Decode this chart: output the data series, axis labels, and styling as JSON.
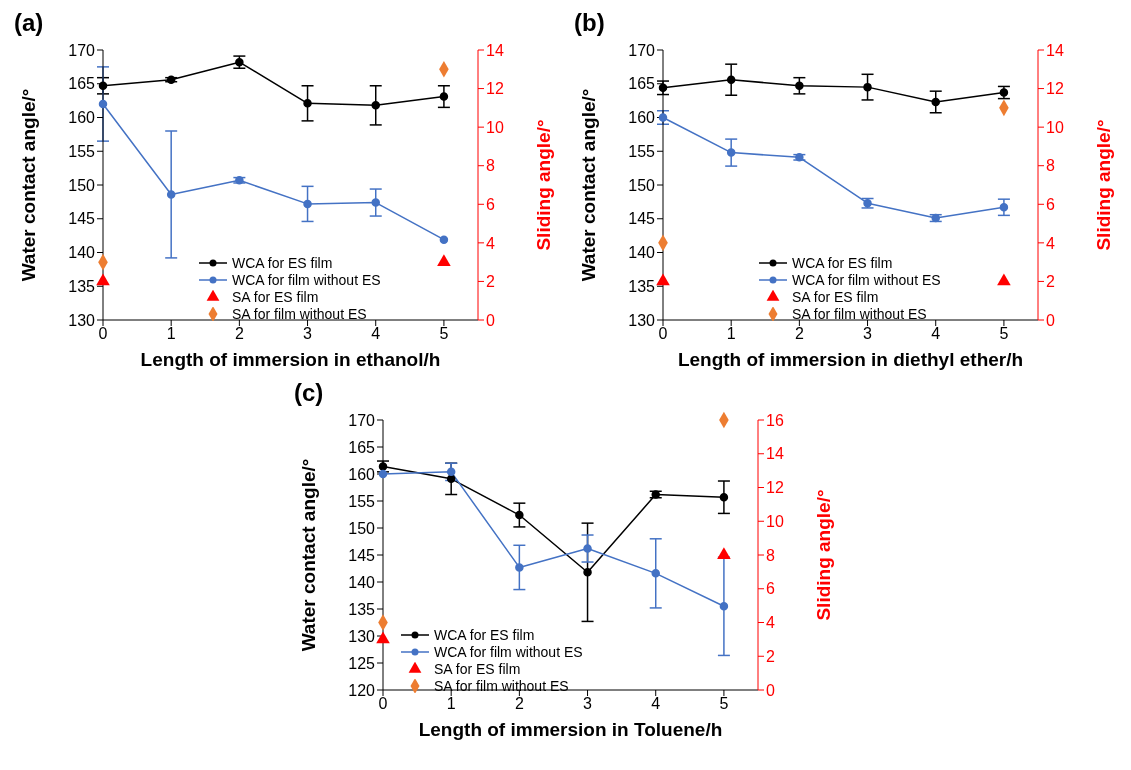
{
  "chart_data": [
    {
      "type": "line",
      "title": "(a)",
      "xlabel": "Length of immersion in ethanol/h",
      "ylabel": "Water contact angle/°",
      "y2label": "Sliding angle/°",
      "x": [
        0,
        1,
        2,
        3,
        4,
        5
      ],
      "xlim": [
        0,
        5.5
      ],
      "xticks": [
        0,
        1,
        2,
        3,
        4,
        5
      ],
      "ylim": [
        130,
        170
      ],
      "yticks": [
        130,
        135,
        140,
        145,
        150,
        155,
        160,
        165,
        170
      ],
      "y2lim": [
        0,
        14
      ],
      "y2ticks": [
        0,
        2,
        4,
        6,
        8,
        10,
        12,
        14
      ],
      "grid": false,
      "legend": "bottom",
      "series": [
        {
          "name": "WCA for ES film",
          "type": "line",
          "color": "#000000",
          "marker": "circle",
          "values": [
            164.7,
            165.6,
            168.2,
            162.1,
            161.8,
            163.1
          ],
          "errors": [
            1.2,
            0.3,
            0.9,
            2.6,
            2.9,
            1.6
          ]
        },
        {
          "name": "WCA for film without ES",
          "type": "line",
          "color": "#4472c4",
          "marker": "circle",
          "values": [
            162.0,
            148.6,
            150.7,
            147.2,
            147.4,
            141.9
          ],
          "errors": [
            5.5,
            9.4,
            0.4,
            2.6,
            2.0,
            null
          ]
        },
        {
          "name": "SA for ES film",
          "type": "scatter",
          "axis": "y2",
          "color": "#ff0000",
          "marker": "triangle",
          "values": [
            2,
            null,
            null,
            null,
            null,
            3
          ]
        },
        {
          "name": "SA for film without ES",
          "type": "scatter",
          "axis": "y2",
          "color": "#ed7d31",
          "marker": "diamond",
          "values": [
            3,
            null,
            null,
            null,
            null,
            13
          ]
        }
      ]
    },
    {
      "type": "line",
      "title": "(b)",
      "xlabel": "Length of immersion in diethyl ether/h",
      "ylabel": "Water contact angle/°",
      "y2label": "Sliding angle/°",
      "x": [
        0,
        1,
        2,
        3,
        4,
        5
      ],
      "xlim": [
        0,
        5.5
      ],
      "xticks": [
        0,
        1,
        2,
        3,
        4,
        5
      ],
      "ylim": [
        130,
        170
      ],
      "yticks": [
        130,
        135,
        140,
        145,
        150,
        155,
        160,
        165,
        170
      ],
      "y2lim": [
        0,
        14
      ],
      "y2ticks": [
        0,
        2,
        4,
        6,
        8,
        10,
        12,
        14
      ],
      "grid": false,
      "legend": "bottom",
      "series": [
        {
          "name": "WCA for ES film",
          "type": "line",
          "color": "#000000",
          "marker": "circle",
          "values": [
            164.4,
            165.6,
            164.7,
            164.5,
            162.3,
            163.7
          ],
          "errors": [
            1.0,
            2.3,
            1.2,
            1.9,
            1.6,
            0.9
          ]
        },
        {
          "name": "WCA for film without ES",
          "type": "line",
          "color": "#4472c4",
          "marker": "circle",
          "values": [
            160.0,
            154.8,
            154.1,
            147.3,
            145.1,
            146.7
          ],
          "errors": [
            1.0,
            2.0,
            0.4,
            0.7,
            0.5,
            1.2
          ]
        },
        {
          "name": "SA for ES film",
          "type": "scatter",
          "axis": "y2",
          "color": "#ff0000",
          "marker": "triangle",
          "values": [
            2,
            null,
            null,
            null,
            null,
            2
          ]
        },
        {
          "name": "SA for film without ES",
          "type": "scatter",
          "axis": "y2",
          "color": "#ed7d31",
          "marker": "diamond",
          "values": [
            4,
            null,
            null,
            null,
            null,
            11
          ]
        }
      ]
    },
    {
      "type": "line",
      "title": "(c)",
      "xlabel": "Length of immersion in Toluene/h",
      "ylabel": "Water contact angle/°",
      "y2label": "Sliding angle/°",
      "x": [
        0,
        1,
        2,
        3,
        4,
        5
      ],
      "xlim": [
        0,
        5.5
      ],
      "xticks": [
        0,
        1,
        2,
        3,
        4,
        5
      ],
      "ylim": [
        120,
        170
      ],
      "yticks": [
        120,
        125,
        130,
        135,
        140,
        145,
        150,
        155,
        160,
        165,
        170
      ],
      "y2lim": [
        0,
        16
      ],
      "y2ticks": [
        0,
        2,
        4,
        6,
        8,
        10,
        12,
        14,
        16
      ],
      "grid": false,
      "legend": "bottom left",
      "series": [
        {
          "name": "WCA for ES film",
          "type": "line",
          "color": "#000000",
          "marker": "circle",
          "values": [
            161.4,
            159.1,
            152.4,
            141.8,
            156.2,
            155.7
          ],
          "errors": [
            1.0,
            2.9,
            2.2,
            9.1,
            0.6,
            3.0
          ]
        },
        {
          "name": "WCA for film without ES",
          "type": "line",
          "color": "#4472c4",
          "marker": "circle",
          "values": [
            160.0,
            160.4,
            142.7,
            146.2,
            141.6,
            135.5
          ],
          "errors": [
            null,
            1.6,
            4.1,
            2.5,
            6.4,
            9.1
          ]
        },
        {
          "name": "SA for ES film",
          "type": "scatter",
          "axis": "y2",
          "color": "#ff0000",
          "marker": "triangle",
          "values": [
            3,
            null,
            null,
            null,
            null,
            8
          ]
        },
        {
          "name": "SA for film without ES",
          "type": "scatter",
          "axis": "y2",
          "color": "#ed7d31",
          "marker": "diamond",
          "values": [
            4,
            null,
            null,
            null,
            null,
            16
          ]
        }
      ]
    }
  ]
}
